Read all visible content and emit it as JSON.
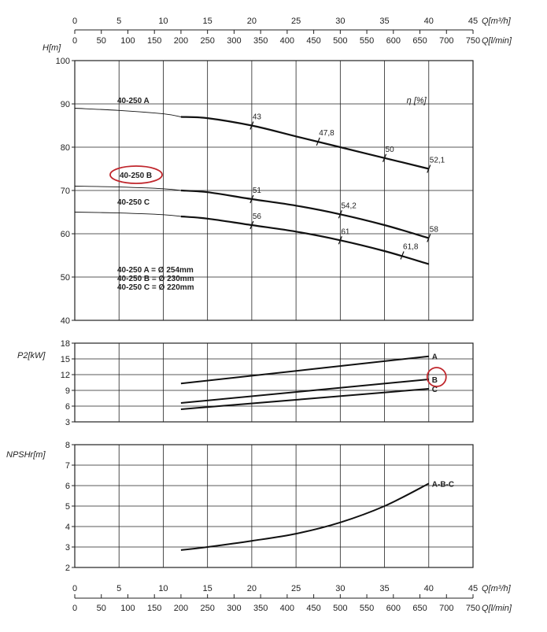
{
  "chart_data": [
    {
      "type": "line",
      "panel": "head",
      "ylabel": "H[m]",
      "ylim": [
        40,
        100
      ],
      "yticks": [
        40,
        50,
        60,
        70,
        80,
        90,
        100
      ],
      "xlim": [
        0,
        45
      ],
      "top_axis": {
        "q_m3h_label": "Q[m³/h]",
        "q_m3h_ticks": [
          0,
          5,
          10,
          15,
          20,
          25,
          30,
          35,
          40,
          45
        ],
        "q_lmin_label": "Q[l/min]",
        "q_lmin_ticks": [
          0,
          50,
          100,
          150,
          200,
          250,
          300,
          350,
          400,
          450,
          500,
          550,
          600,
          650,
          700,
          750
        ]
      },
      "series": [
        {
          "name": "40-250 A",
          "x": [
            0,
            5,
            10,
            12,
            15,
            20,
            25,
            30,
            35,
            40
          ],
          "y": [
            89,
            88.5,
            87.7,
            87,
            86.7,
            85,
            82.5,
            80,
            77.5,
            75
          ],
          "bold_from_x": 12
        },
        {
          "name": "40-250 B",
          "x": [
            0,
            5,
            10,
            12,
            15,
            20,
            25,
            30,
            35,
            40
          ],
          "y": [
            71,
            70.8,
            70.4,
            70,
            69.6,
            68,
            66.5,
            64.5,
            62,
            59
          ]
        },
        {
          "name": "40-250 C",
          "x": [
            0,
            5,
            10,
            12,
            15,
            20,
            25,
            30,
            35,
            40
          ],
          "y": [
            65,
            64.8,
            64.4,
            64,
            63.5,
            62,
            60.5,
            58.5,
            56,
            53
          ],
          "bold_from_x": 12
        }
      ],
      "efficiency_label": "η [%]",
      "efficiency_marks": [
        {
          "value": "43",
          "x": 20,
          "y": 85
        },
        {
          "value": "47,8",
          "x": 27.5,
          "y": 81.3
        },
        {
          "value": "50",
          "x": 35,
          "y": 77.5
        },
        {
          "value": "52,1",
          "x": 40,
          "y": 75
        },
        {
          "value": "51",
          "x": 20,
          "y": 68
        },
        {
          "value": "54,2",
          "x": 30,
          "y": 64.5
        },
        {
          "value": "58",
          "x": 40,
          "y": 59
        },
        {
          "value": "56",
          "x": 20,
          "y": 62
        },
        {
          "value": "61",
          "x": 30,
          "y": 58.5
        },
        {
          "value": "61,8",
          "x": 37,
          "y": 55
        }
      ],
      "annotations": {
        "label_a": "40-250 A",
        "label_b": "40-250 B",
        "label_c": "40-250 C",
        "diameters": [
          "40-250 A = Ø 254mm",
          "40-250 B = Ø 230mm",
          "40-250 C = Ø 220mm"
        ]
      },
      "grid": true
    },
    {
      "type": "line",
      "panel": "power",
      "ylabel": "P2[kW]",
      "ylim": [
        3,
        18
      ],
      "yticks": [
        3,
        6,
        9,
        12,
        15,
        18
      ],
      "xlim": [
        0,
        45
      ],
      "series": [
        {
          "name": "A",
          "x": [
            12,
            40
          ],
          "y": [
            10.3,
            15.5
          ]
        },
        {
          "name": "B",
          "x": [
            12,
            40
          ],
          "y": [
            6.6,
            11.1
          ]
        },
        {
          "name": "C",
          "x": [
            12,
            40
          ],
          "y": [
            5.4,
            9.3
          ]
        }
      ],
      "grid": true
    },
    {
      "type": "line",
      "panel": "npsh",
      "ylabel": "NPSHr[m]",
      "ylim": [
        2,
        8
      ],
      "yticks": [
        2,
        3,
        4,
        5,
        6,
        7,
        8
      ],
      "xlim": [
        0,
        45
      ],
      "bottom_axis": {
        "q_m3h_label": "Q[m³/h]",
        "q_m3h_ticks": [
          0,
          5,
          10,
          15,
          20,
          25,
          30,
          35,
          40,
          45
        ],
        "q_lmin_label": "Q[l/min]",
        "q_lmin_ticks": [
          0,
          50,
          100,
          150,
          200,
          250,
          300,
          350,
          400,
          450,
          500,
          550,
          600,
          650,
          700,
          750
        ]
      },
      "series": [
        {
          "name": "A-B-C",
          "x": [
            12,
            15,
            20,
            25,
            30,
            35,
            40
          ],
          "y": [
            2.85,
            3.0,
            3.3,
            3.65,
            4.2,
            5.0,
            6.1
          ]
        }
      ],
      "grid": true
    }
  ],
  "highlight_color": "#c0272d",
  "line_color": "#111111"
}
